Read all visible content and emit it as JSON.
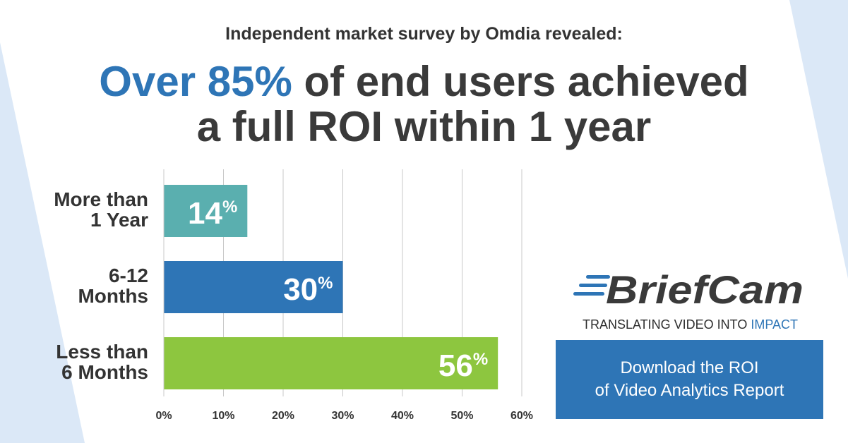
{
  "subtitle": "Independent market survey by Omdia revealed:",
  "headline": {
    "highlight": "Over 85%",
    "line1_rest": " of end users achieved",
    "line2": "a full ROI within 1 year"
  },
  "chart_data": {
    "type": "bar",
    "orientation": "horizontal",
    "categories": [
      [
        "More than",
        "1 Year"
      ],
      [
        "6-12",
        "Months"
      ],
      [
        "Less than",
        "6 Months"
      ]
    ],
    "values": [
      14,
      30,
      56
    ],
    "value_labels": [
      "14",
      "30",
      "56"
    ],
    "value_suffix": "%",
    "colors": [
      "#5aafaf",
      "#2e75b6",
      "#8dc63f"
    ],
    "xlim": [
      0,
      60
    ],
    "xticks": [
      0,
      10,
      20,
      30,
      40,
      50,
      60
    ],
    "xtick_labels": [
      "0%",
      "10%",
      "20%",
      "30%",
      "40%",
      "50%",
      "60%"
    ],
    "grid": true
  },
  "brand": {
    "name": "BriefCam",
    "tagline_main": "TRANSLATING VIDEO INTO ",
    "tagline_accent": "IMPACT"
  },
  "cta": {
    "line1": "Download the ROI",
    "line2": "of Video Analytics Report"
  },
  "colors": {
    "accent_blue": "#2e75b6",
    "background_shape": "#dbe8f7",
    "text_dark": "#333333"
  }
}
